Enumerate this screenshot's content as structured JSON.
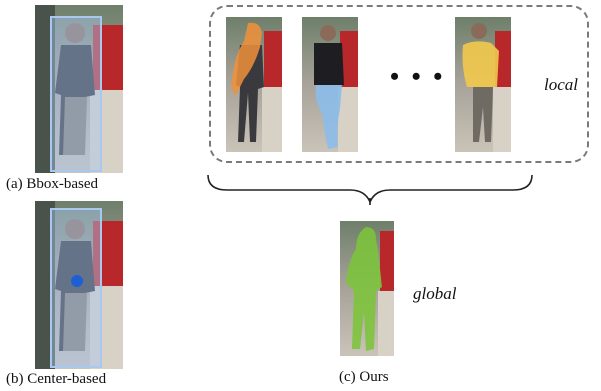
{
  "captions": {
    "bbox": "(a) Bbox-based",
    "center": "(b) Center-based",
    "ours": "(c) Ours"
  },
  "labels": {
    "local": "local",
    "global": "global",
    "ellipsis": "• • •"
  },
  "colors": {
    "bbox_overlay": "#a9c8f0",
    "center_dot": "#1f5fd6",
    "part_orange": "#f0913a",
    "part_blue": "#8cbcea",
    "part_yellow": "#f2c94c",
    "global_green": "#7cc43a",
    "dashed_border": "#7a7a7a"
  }
}
